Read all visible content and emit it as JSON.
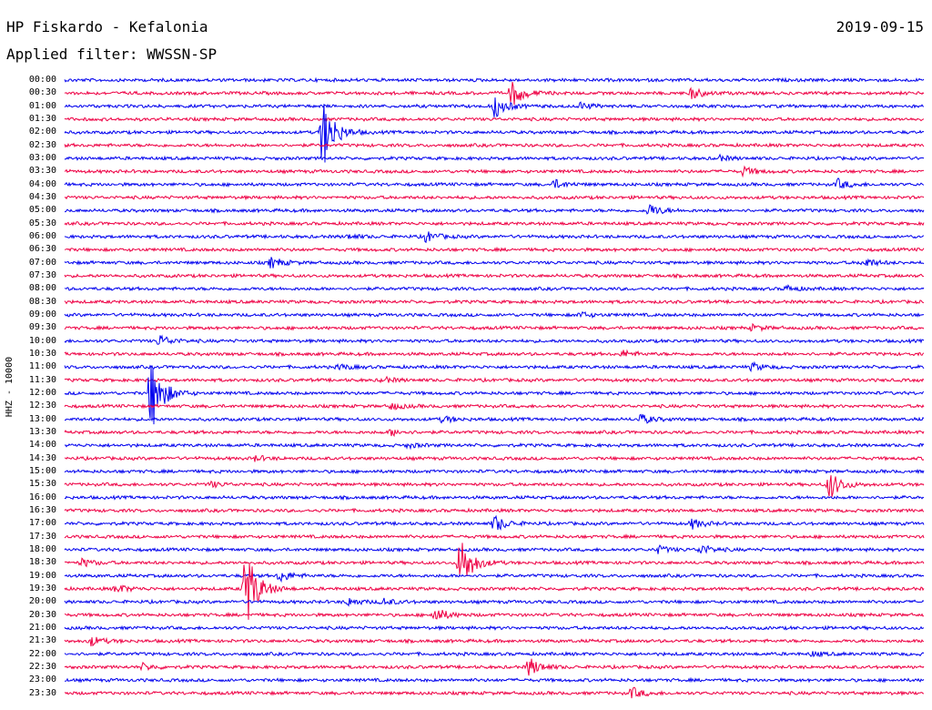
{
  "header": {
    "station_title": "HP Fiskardo - Kefalonia",
    "date": "2019-09-15",
    "filter_text": "Applied filter: WWSSN-SP",
    "channel_label": "HHZ - 10000"
  },
  "colors": {
    "even_trace": "#0000ee",
    "odd_trace": "#ee0044",
    "text": "#000000",
    "background": "#ffffff"
  },
  "traces": [
    {
      "label": "00:00",
      "events": []
    },
    {
      "label": "00:30",
      "events": [
        {
          "t": 0.52,
          "amp": 2.6
        },
        {
          "t": 0.73,
          "amp": 1.0
        }
      ]
    },
    {
      "label": "01:00",
      "events": [
        {
          "t": 0.5,
          "amp": 2.1
        },
        {
          "t": 0.6,
          "amp": 0.6
        }
      ]
    },
    {
      "label": "01:30",
      "events": []
    },
    {
      "label": "02:00",
      "events": [
        {
          "t": 0.3,
          "amp": 7.0
        }
      ]
    },
    {
      "label": "02:30",
      "events": []
    },
    {
      "label": "03:00",
      "events": [
        {
          "t": 0.76,
          "amp": 0.5
        }
      ]
    },
    {
      "label": "03:30",
      "events": [
        {
          "t": 0.79,
          "amp": 0.8
        }
      ]
    },
    {
      "label": "04:00",
      "events": [
        {
          "t": 0.57,
          "amp": 0.8
        },
        {
          "t": 0.9,
          "amp": 0.9
        }
      ]
    },
    {
      "label": "04:30",
      "events": []
    },
    {
      "label": "05:00",
      "events": [
        {
          "t": 0.68,
          "amp": 1.2
        }
      ]
    },
    {
      "label": "05:30",
      "events": []
    },
    {
      "label": "06:00",
      "events": [
        {
          "t": 0.42,
          "amp": 1.0
        },
        {
          "t": 0.33,
          "amp": 0.4
        }
      ]
    },
    {
      "label": "06:30",
      "events": []
    },
    {
      "label": "07:00",
      "events": [
        {
          "t": 0.24,
          "amp": 1.0
        },
        {
          "t": 0.93,
          "amp": 0.9
        }
      ]
    },
    {
      "label": "07:30",
      "events": []
    },
    {
      "label": "08:00",
      "events": [
        {
          "t": 0.84,
          "amp": 0.5
        }
      ]
    },
    {
      "label": "08:30",
      "events": []
    },
    {
      "label": "09:00",
      "events": [
        {
          "t": 0.6,
          "amp": 0.5
        }
      ]
    },
    {
      "label": "09:30",
      "events": [
        {
          "t": 0.8,
          "amp": 0.5
        }
      ]
    },
    {
      "label": "10:00",
      "events": [
        {
          "t": 0.11,
          "amp": 1.1
        }
      ]
    },
    {
      "label": "10:30",
      "events": [
        {
          "t": 0.65,
          "amp": 0.6
        }
      ]
    },
    {
      "label": "11:00",
      "events": [
        {
          "t": 0.32,
          "amp": 0.5
        },
        {
          "t": 0.8,
          "amp": 0.7
        }
      ]
    },
    {
      "label": "11:30",
      "events": [
        {
          "t": 0.37,
          "amp": 0.5
        }
      ]
    },
    {
      "label": "12:00",
      "events": [
        {
          "t": 0.1,
          "amp": 7.5
        }
      ]
    },
    {
      "label": "12:30",
      "events": [
        {
          "t": 0.38,
          "amp": 0.6
        }
      ]
    },
    {
      "label": "13:00",
      "events": [
        {
          "t": 0.44,
          "amp": 0.6
        },
        {
          "t": 0.67,
          "amp": 0.9
        }
      ]
    },
    {
      "label": "13:30",
      "events": [
        {
          "t": 0.38,
          "amp": 0.6
        }
      ]
    },
    {
      "label": "14:00",
      "events": [
        {
          "t": 0.4,
          "amp": 0.4
        }
      ]
    },
    {
      "label": "14:30",
      "events": [
        {
          "t": 0.22,
          "amp": 0.5
        }
      ]
    },
    {
      "label": "15:00",
      "events": []
    },
    {
      "label": "15:30",
      "events": [
        {
          "t": 0.17,
          "amp": 0.5
        },
        {
          "t": 0.89,
          "amp": 2.6
        }
      ]
    },
    {
      "label": "16:00",
      "events": []
    },
    {
      "label": "16:30",
      "events": []
    },
    {
      "label": "17:00",
      "events": [
        {
          "t": 0.5,
          "amp": 1.6
        },
        {
          "t": 0.73,
          "amp": 0.9
        }
      ]
    },
    {
      "label": "17:30",
      "events": []
    },
    {
      "label": "18:00",
      "events": [
        {
          "t": 0.69,
          "amp": 0.7
        },
        {
          "t": 0.74,
          "amp": 0.9
        }
      ]
    },
    {
      "label": "18:30",
      "events": [
        {
          "t": 0.46,
          "amp": 5.5
        },
        {
          "t": 0.02,
          "amp": 0.7
        }
      ]
    },
    {
      "label": "19:00",
      "events": [
        {
          "t": 0.25,
          "amp": 1.1
        }
      ]
    },
    {
      "label": "19:30",
      "events": [
        {
          "t": 0.21,
          "amp": 8.0
        },
        {
          "t": 0.06,
          "amp": 0.8
        }
      ]
    },
    {
      "label": "20:00",
      "events": [
        {
          "t": 0.33,
          "amp": 0.7
        },
        {
          "t": 0.37,
          "amp": 0.7
        }
      ]
    },
    {
      "label": "20:30",
      "events": [
        {
          "t": 0.43,
          "amp": 1.5
        }
      ]
    },
    {
      "label": "21:00",
      "events": []
    },
    {
      "label": "21:30",
      "events": [
        {
          "t": 0.03,
          "amp": 0.9
        }
      ]
    },
    {
      "label": "22:00",
      "events": [
        {
          "t": 0.87,
          "amp": 0.4
        }
      ]
    },
    {
      "label": "22:30",
      "events": [
        {
          "t": 0.54,
          "amp": 1.8
        },
        {
          "t": 0.09,
          "amp": 0.6
        }
      ]
    },
    {
      "label": "23:00",
      "events": []
    },
    {
      "label": "23:30",
      "events": [
        {
          "t": 0.66,
          "amp": 1.0
        }
      ]
    }
  ]
}
